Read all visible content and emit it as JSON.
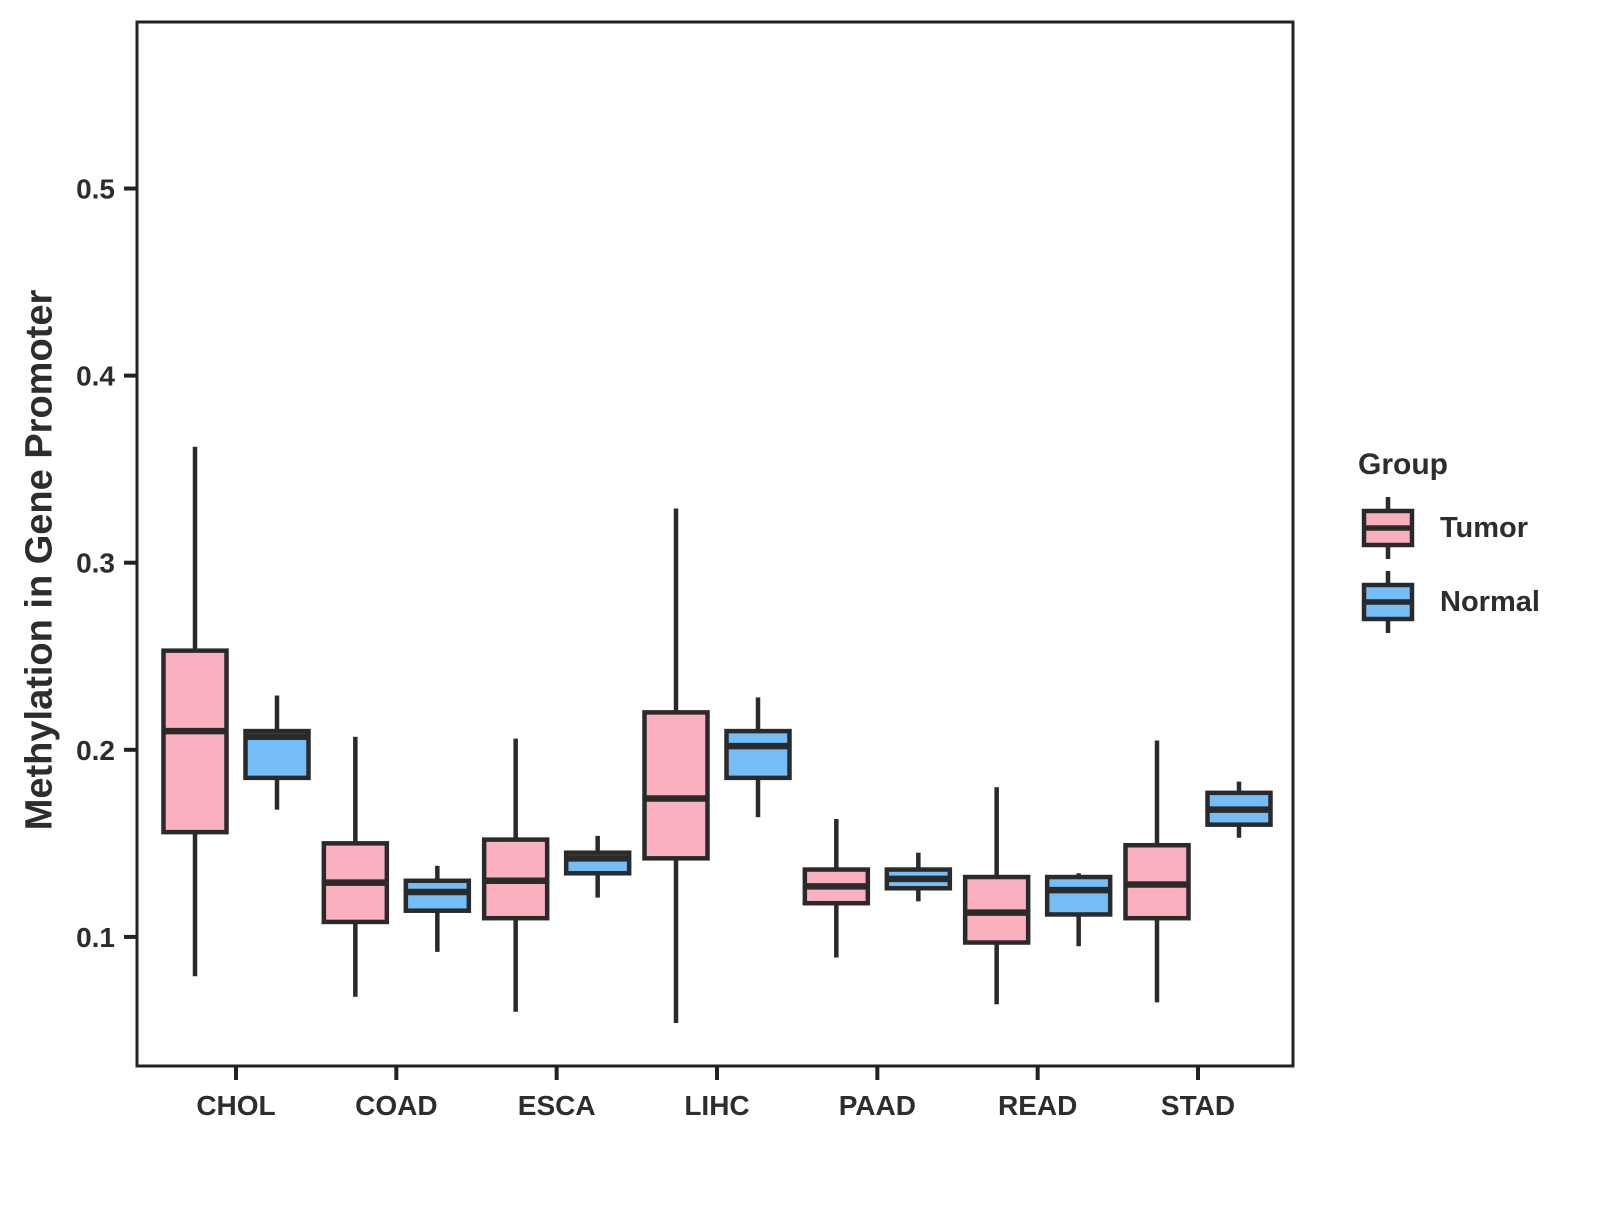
{
  "chart_data": {
    "type": "boxplot",
    "title": "",
    "xlabel": "",
    "ylabel": "Methylation in Gene Promoter",
    "categories": [
      "CHOL",
      "COAD",
      "ESCA",
      "LIHC",
      "PAAD",
      "READ",
      "STAD"
    ],
    "y_ticks": [
      "0.1",
      "0.2",
      "0.3",
      "0.4",
      "0.5"
    ],
    "y_tick_values": [
      0.1,
      0.2,
      0.3,
      0.4,
      0.5
    ],
    "ylim": [
      0.031,
      0.589
    ],
    "grid": "off",
    "legend": {
      "title": "Group",
      "position": "right",
      "entries": [
        {
          "label": "Tumor",
          "color": "#FBB0BF"
        },
        {
          "label": "Normal",
          "color": "#74BDF6"
        }
      ]
    },
    "colors": {
      "tumor_fill": "#FBB0BF",
      "normal_fill": "#74BDF6",
      "stroke": "#2A2A2A",
      "panel_border": "#222222",
      "text": "#2d2d2d"
    },
    "series": [
      {
        "name": "Tumor",
        "color": "#FBB0BF",
        "boxes": [
          {
            "category": "CHOL",
            "whisker_low": 0.079,
            "q1": 0.156,
            "median": 0.21,
            "q3": 0.253,
            "whisker_high": 0.362
          },
          {
            "category": "COAD",
            "whisker_low": 0.068,
            "q1": 0.108,
            "median": 0.129,
            "q3": 0.15,
            "whisker_high": 0.207
          },
          {
            "category": "ESCA",
            "whisker_low": 0.06,
            "q1": 0.11,
            "median": 0.13,
            "q3": 0.152,
            "whisker_high": 0.206
          },
          {
            "category": "LIHC",
            "whisker_low": 0.054,
            "q1": 0.142,
            "median": 0.174,
            "q3": 0.22,
            "whisker_high": 0.329
          },
          {
            "category": "PAAD",
            "whisker_low": 0.089,
            "q1": 0.118,
            "median": 0.127,
            "q3": 0.136,
            "whisker_high": 0.163
          },
          {
            "category": "READ",
            "whisker_low": 0.064,
            "q1": 0.097,
            "median": 0.113,
            "q3": 0.132,
            "whisker_high": 0.18
          },
          {
            "category": "STAD",
            "whisker_low": 0.065,
            "q1": 0.11,
            "median": 0.128,
            "q3": 0.149,
            "whisker_high": 0.205
          }
        ]
      },
      {
        "name": "Normal",
        "color": "#74BDF6",
        "boxes": [
          {
            "category": "CHOL",
            "whisker_low": 0.168,
            "q1": 0.185,
            "median": 0.207,
            "q3": 0.21,
            "whisker_high": 0.229
          },
          {
            "category": "COAD",
            "whisker_low": 0.092,
            "q1": 0.114,
            "median": 0.124,
            "q3": 0.13,
            "whisker_high": 0.138
          },
          {
            "category": "ESCA",
            "whisker_low": 0.121,
            "q1": 0.134,
            "median": 0.142,
            "q3": 0.145,
            "whisker_high": 0.154
          },
          {
            "category": "LIHC",
            "whisker_low": 0.164,
            "q1": 0.185,
            "median": 0.202,
            "q3": 0.21,
            "whisker_high": 0.228
          },
          {
            "category": "PAAD",
            "whisker_low": 0.119,
            "q1": 0.126,
            "median": 0.131,
            "q3": 0.136,
            "whisker_high": 0.145
          },
          {
            "category": "READ",
            "whisker_low": 0.095,
            "q1": 0.112,
            "median": 0.125,
            "q3": 0.132,
            "whisker_high": 0.134
          },
          {
            "category": "STAD",
            "whisker_low": 0.153,
            "q1": 0.16,
            "median": 0.168,
            "q3": 0.177,
            "whisker_high": 0.183
          }
        ]
      }
    ]
  }
}
